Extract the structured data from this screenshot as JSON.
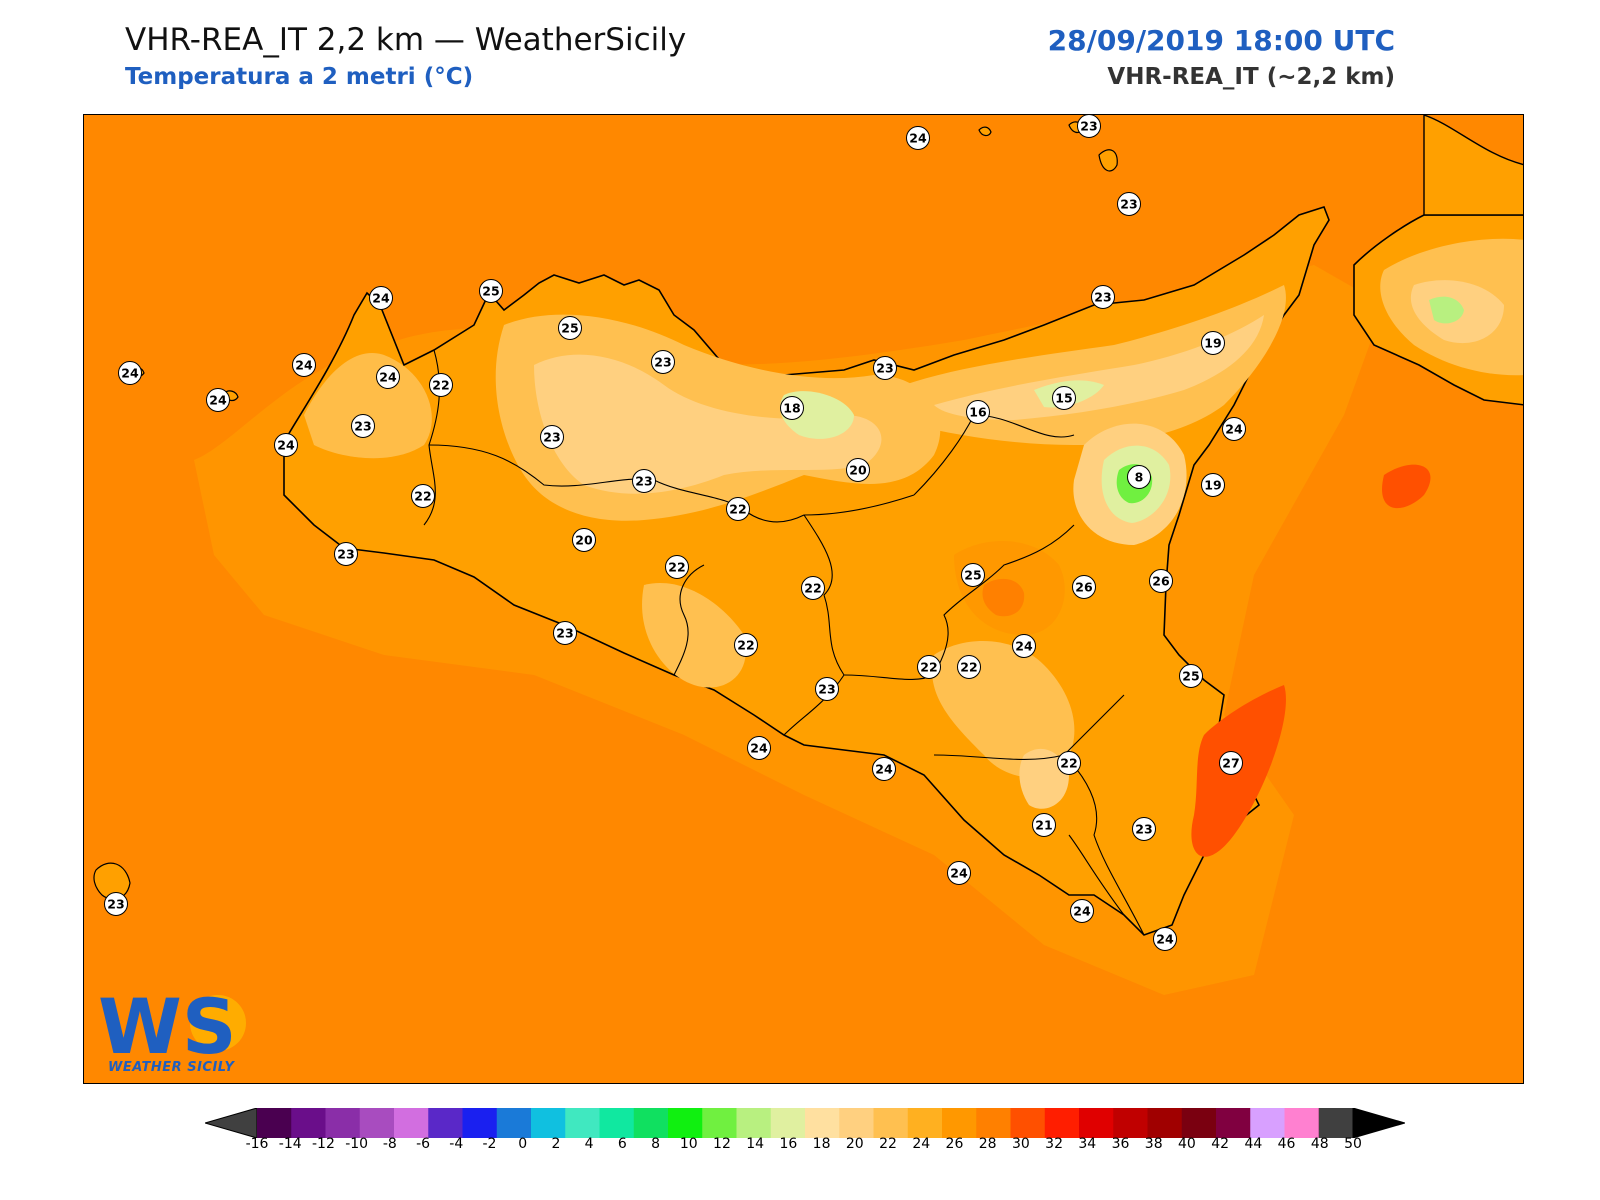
{
  "header": {
    "title_left": "VHR-REA_IT 2,2 km — WeatherSicily",
    "subtitle_left": "Temperatura a 2 metri (°C)",
    "title_right": "28/09/2019 18:00 UTC",
    "subtitle_right": "VHR-REA_IT (~2,2 km)"
  },
  "colors": {
    "sea_base": "#ff8800",
    "land_base": "#ffa000",
    "accent_blue": "#1f5fc0",
    "coastline": "#000000"
  },
  "stations": [
    "24",
    "23",
    "23",
    "24",
    "25",
    "24",
    "24",
    "24",
    "22",
    "25",
    "23",
    "23",
    "18",
    "23",
    "19",
    "16",
    "15",
    "24",
    "23",
    "22",
    "23",
    "19",
    "20",
    "8",
    "20",
    "22",
    "23",
    "22",
    "22",
    "24",
    "25",
    "26",
    "26",
    "23",
    "23",
    "22",
    "24",
    "25",
    "22",
    "23",
    "22",
    "24",
    "24",
    "22",
    "27",
    "23",
    "21",
    "24",
    "24",
    "24",
    "24",
    "23"
  ],
  "logo": {
    "text": "WS",
    "subtitle": "WEATHER SICILY"
  },
  "colorbar": {
    "ticks": [
      "-16",
      "-14",
      "-12",
      "-10",
      "-8",
      "-6",
      "-4",
      "-2",
      "0",
      "2",
      "4",
      "6",
      "8",
      "10",
      "12",
      "14",
      "16",
      "18",
      "20",
      "22",
      "24",
      "26",
      "28",
      "30",
      "32",
      "34",
      "36",
      "38",
      "40",
      "42",
      "44",
      "46",
      "48",
      "50"
    ],
    "colors": [
      "#4a0050",
      "#6a0e8a",
      "#8a2ea8",
      "#a84cbf",
      "#d26ee0",
      "#5a28c8",
      "#1a20f0",
      "#1a7ad8",
      "#10c0e0",
      "#40e8c0",
      "#10e8a0",
      "#10e060",
      "#10f010",
      "#70f040",
      "#b8f080",
      "#e0f0a0",
      "#ffe0a0",
      "#ffd080",
      "#ffc050",
      "#ffb020",
      "#ff9800",
      "#ff8000",
      "#ff5000",
      "#ff1e00",
      "#e00000",
      "#c00000",
      "#a00000",
      "#7a0010",
      "#800040",
      "#d8a0ff",
      "#ff80d0",
      "#ff2090",
      "#808080",
      "#404040"
    ],
    "under_color": "#404040",
    "over_color": "#000000"
  }
}
